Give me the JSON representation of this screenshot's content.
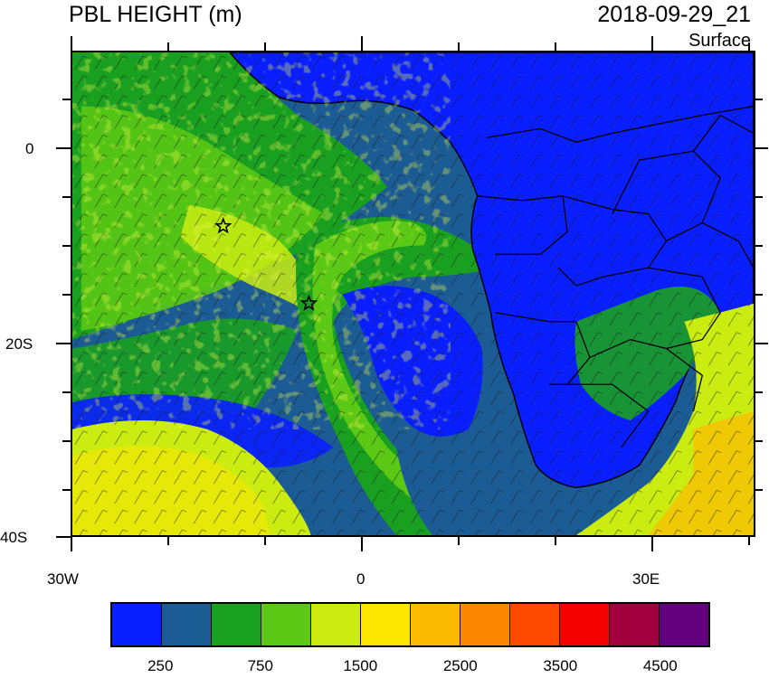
{
  "header": {
    "title": "PBL HEIGHT (m)",
    "datetime": "2018-09-29_21",
    "level": "Surface"
  },
  "map": {
    "longitude_range": [
      -30,
      40
    ],
    "latitude_range": [
      -40,
      10
    ],
    "lon_tick_labels": [
      "30W",
      "0",
      "30E"
    ],
    "lat_tick_labels": [
      "0",
      "20S",
      "40S"
    ],
    "markers": [
      {
        "name": "star",
        "lon": -14.5,
        "lat": -8
      },
      {
        "name": "star",
        "lon": -5.7,
        "lat": -16
      }
    ],
    "colors": {
      "ocean_low": "#1c5c94",
      "land_low": "#0a1fff",
      "mid": "#1aa020",
      "high": "#caec10"
    }
  },
  "colorbar": {
    "colors": [
      "#0a1fff",
      "#1c5c94",
      "#1aa020",
      "#5ac814",
      "#caec10",
      "#fde600",
      "#fdbb00",
      "#fd8800",
      "#fd4a00",
      "#f40000",
      "#a0003c",
      "#62007e"
    ],
    "labels": [
      "250",
      "750",
      "1500",
      "2500",
      "3500",
      "4500"
    ]
  }
}
